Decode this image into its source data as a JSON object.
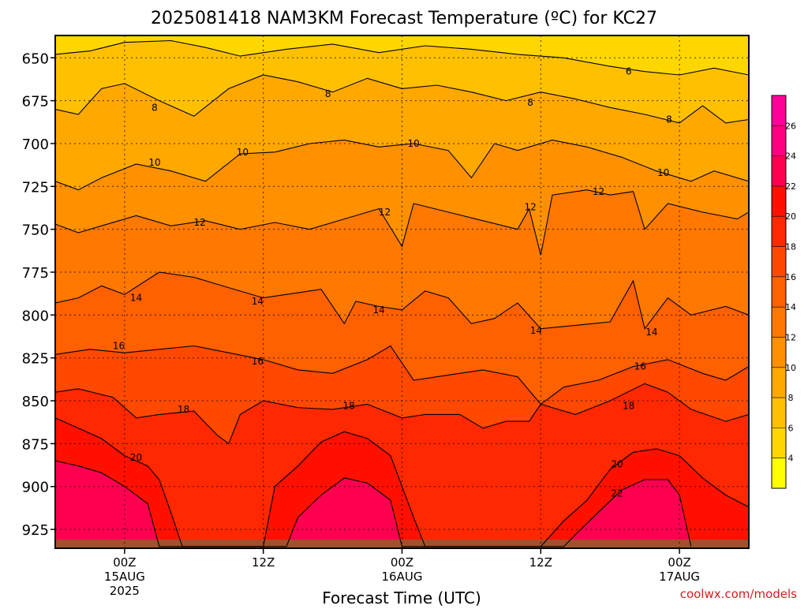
{
  "chart_data": {
    "type": "contour",
    "title": "2025081418 NAM3KM Forecast Temperature (ºC) for KC27",
    "xlabel": "Forecast Time (UTC)",
    "ylabel": "",
    "credit": "coolwx.com/models",
    "x_ticks": [
      {
        "label": "00Z",
        "sub1": "15AUG",
        "sub2": "2025",
        "hours": 6
      },
      {
        "label": "12Z",
        "sub1": "",
        "sub2": "",
        "hours": 18
      },
      {
        "label": "00Z",
        "sub1": "16AUG",
        "sub2": "",
        "hours": 30
      },
      {
        "label": "12Z",
        "sub1": "",
        "sub2": "",
        "hours": 42
      },
      {
        "label": "00Z",
        "sub1": "17AUG",
        "sub2": "",
        "hours": 54
      }
    ],
    "xlim": [
      0,
      60
    ],
    "y_ticks": [
      650,
      675,
      700,
      725,
      750,
      775,
      800,
      825,
      850,
      875,
      900,
      925
    ],
    "ylim": [
      637,
      936
    ],
    "y_inverted": true,
    "grid": true,
    "surface_pressure": 931,
    "colorbar": {
      "levels": [
        2,
        4,
        6,
        8,
        10,
        12,
        14,
        16,
        18,
        20,
        22,
        24,
        26,
        28
      ],
      "labels": [
        "4",
        "6",
        "8",
        "10",
        "12",
        "14",
        "16",
        "18",
        "20",
        "22",
        "24",
        "26"
      ],
      "colors": [
        "#ffff00",
        "#ffd700",
        "#ffc000",
        "#ffa800",
        "#ff9000",
        "#ff7800",
        "#ff6000",
        "#ff4800",
        "#ff2800",
        "#ff1000",
        "#ff0050",
        "#ff0080",
        "#ff0098"
      ]
    },
    "contours": [
      {
        "level": 6,
        "label": "6",
        "label_at": [
          [
            49.6,
            658
          ]
        ],
        "points": [
          [
            0,
            648
          ],
          [
            3,
            646
          ],
          [
            6,
            641
          ],
          [
            10,
            640
          ],
          [
            13,
            644
          ],
          [
            16,
            649
          ],
          [
            20,
            645
          ],
          [
            24,
            642
          ],
          [
            28,
            647
          ],
          [
            32,
            643
          ],
          [
            36,
            645
          ],
          [
            40,
            648
          ],
          [
            44,
            650
          ],
          [
            48,
            655
          ],
          [
            51,
            658
          ],
          [
            54,
            660
          ],
          [
            57,
            656
          ],
          [
            60,
            660
          ]
        ]
      },
      {
        "level": 8,
        "label": "8",
        "label_at": [
          [
            8.6,
            679
          ],
          [
            23.6,
            671
          ],
          [
            41.1,
            676
          ],
          [
            53.1,
            686
          ]
        ],
        "points": [
          [
            0,
            680
          ],
          [
            2,
            683
          ],
          [
            4,
            668
          ],
          [
            6,
            665
          ],
          [
            9,
            675
          ],
          [
            12,
            684
          ],
          [
            15,
            668
          ],
          [
            18,
            660
          ],
          [
            21,
            664
          ],
          [
            24,
            670
          ],
          [
            27,
            662
          ],
          [
            30,
            668
          ],
          [
            33,
            666
          ],
          [
            36,
            670
          ],
          [
            39,
            675
          ],
          [
            42,
            670
          ],
          [
            45,
            674
          ],
          [
            48,
            679
          ],
          [
            51,
            683
          ],
          [
            54,
            688
          ],
          [
            56,
            678
          ],
          [
            58,
            688
          ],
          [
            60,
            686
          ]
        ]
      },
      {
        "level": 10,
        "label": "10",
        "label_at": [
          [
            8.6,
            711
          ],
          [
            16.2,
            705
          ],
          [
            31.0,
            700
          ],
          [
            52.6,
            717
          ]
        ],
        "points": [
          [
            0,
            722
          ],
          [
            2,
            727
          ],
          [
            4,
            720
          ],
          [
            7,
            712
          ],
          [
            10,
            716
          ],
          [
            13,
            722
          ],
          [
            16,
            706
          ],
          [
            19,
            705
          ],
          [
            22,
            700
          ],
          [
            25,
            698
          ],
          [
            28,
            702
          ],
          [
            31,
            700
          ],
          [
            34,
            704
          ],
          [
            36,
            720
          ],
          [
            38,
            700
          ],
          [
            40,
            704
          ],
          [
            43,
            698
          ],
          [
            46,
            702
          ],
          [
            49,
            708
          ],
          [
            52,
            716
          ],
          [
            55,
            722
          ],
          [
            57,
            716
          ],
          [
            60,
            722
          ]
        ]
      },
      {
        "level": 12,
        "label": "12",
        "label_at": [
          [
            12.5,
            746
          ],
          [
            28.5,
            740
          ],
          [
            41.1,
            737
          ],
          [
            47.0,
            728
          ]
        ],
        "points": [
          [
            0,
            747
          ],
          [
            2,
            752
          ],
          [
            4,
            748
          ],
          [
            7,
            742
          ],
          [
            10,
            748
          ],
          [
            13,
            745
          ],
          [
            16,
            750
          ],
          [
            19,
            746
          ],
          [
            22,
            750
          ],
          [
            25,
            744
          ],
          [
            28,
            738
          ],
          [
            30,
            760
          ],
          [
            31,
            735
          ],
          [
            34,
            740
          ],
          [
            37,
            745
          ],
          [
            40,
            750
          ],
          [
            41,
            738
          ],
          [
            42,
            765
          ],
          [
            43,
            730
          ],
          [
            46,
            727
          ],
          [
            48,
            730
          ],
          [
            50,
            728
          ],
          [
            51,
            750
          ],
          [
            53,
            735
          ],
          [
            56,
            740
          ],
          [
            59,
            744
          ],
          [
            60,
            740
          ]
        ]
      },
      {
        "level": 14,
        "label": "14",
        "label_at": [
          [
            7.0,
            790
          ],
          [
            17.5,
            792
          ],
          [
            28.0,
            797
          ],
          [
            41.6,
            809
          ],
          [
            51.6,
            810
          ]
        ],
        "points": [
          [
            0,
            793
          ],
          [
            2,
            790
          ],
          [
            4,
            783
          ],
          [
            6,
            788
          ],
          [
            9,
            775
          ],
          [
            12,
            778
          ],
          [
            15,
            784
          ],
          [
            18,
            790
          ],
          [
            21,
            787
          ],
          [
            23,
            785
          ],
          [
            25,
            805
          ],
          [
            26,
            792
          ],
          [
            28,
            795
          ],
          [
            30,
            797
          ],
          [
            32,
            786
          ],
          [
            34,
            790
          ],
          [
            36,
            805
          ],
          [
            38,
            802
          ],
          [
            40,
            793
          ],
          [
            42,
            808
          ],
          [
            45,
            806
          ],
          [
            48,
            804
          ],
          [
            50,
            780
          ],
          [
            51,
            808
          ],
          [
            53,
            790
          ],
          [
            55,
            800
          ],
          [
            58,
            795
          ],
          [
            60,
            800
          ]
        ]
      },
      {
        "level": 16,
        "label": "16",
        "label_at": [
          [
            5.5,
            818
          ],
          [
            17.5,
            827
          ],
          [
            50.6,
            830
          ]
        ],
        "points": [
          [
            0,
            823
          ],
          [
            3,
            820
          ],
          [
            6,
            822
          ],
          [
            9,
            820
          ],
          [
            12,
            818
          ],
          [
            15,
            822
          ],
          [
            18,
            826
          ],
          [
            21,
            832
          ],
          [
            24,
            834
          ],
          [
            27,
            826
          ],
          [
            29,
            818
          ],
          [
            31,
            838
          ],
          [
            34,
            835
          ],
          [
            37,
            832
          ],
          [
            40,
            836
          ],
          [
            42,
            852
          ],
          [
            44,
            842
          ],
          [
            47,
            838
          ],
          [
            50,
            830
          ],
          [
            53,
            826
          ],
          [
            56,
            834
          ],
          [
            58,
            838
          ],
          [
            60,
            830
          ]
        ]
      },
      {
        "level": 18,
        "label": "18",
        "label_at": [
          [
            11.1,
            855
          ],
          [
            25.4,
            853
          ],
          [
            49.6,
            853
          ]
        ],
        "points": [
          [
            0,
            845
          ],
          [
            2,
            843
          ],
          [
            5,
            848
          ],
          [
            7,
            860
          ],
          [
            9,
            858
          ],
          [
            12,
            856
          ],
          [
            14,
            870
          ],
          [
            15,
            875
          ],
          [
            16,
            858
          ],
          [
            18,
            850
          ],
          [
            21,
            854
          ],
          [
            24,
            855
          ],
          [
            27,
            852
          ],
          [
            30,
            860
          ],
          [
            32,
            858
          ],
          [
            35,
            858
          ],
          [
            37,
            866
          ],
          [
            39,
            862
          ],
          [
            41,
            862
          ],
          [
            42,
            852
          ],
          [
            45,
            858
          ],
          [
            48,
            850
          ],
          [
            51,
            840
          ],
          [
            53,
            845
          ],
          [
            55,
            855
          ],
          [
            58,
            862
          ],
          [
            60,
            858
          ]
        ]
      },
      {
        "level": 20,
        "label": "20",
        "label_at": [
          [
            7.0,
            883
          ],
          [
            48.6,
            887
          ]
        ],
        "points": [
          [
            0,
            860
          ],
          [
            2,
            866
          ],
          [
            4,
            872
          ],
          [
            6,
            882
          ],
          [
            8,
            888
          ],
          [
            9,
            896
          ],
          [
            10,
            915
          ],
          [
            11,
            935
          ],
          [
            14,
            935
          ],
          [
            17,
            935
          ],
          [
            18,
            935
          ],
          [
            19,
            900
          ],
          [
            21,
            888
          ],
          [
            23,
            874
          ],
          [
            25,
            868
          ],
          [
            27,
            872
          ],
          [
            29,
            882
          ],
          [
            30,
            900
          ],
          [
            31,
            918
          ],
          [
            32,
            935
          ],
          [
            35,
            935
          ],
          [
            38,
            935
          ],
          [
            41,
            935
          ],
          [
            42,
            935
          ],
          [
            44,
            920
          ],
          [
            46,
            908
          ],
          [
            48,
            890
          ],
          [
            50,
            880
          ],
          [
            52,
            878
          ],
          [
            54,
            882
          ],
          [
            56,
            895
          ],
          [
            58,
            905
          ],
          [
            60,
            912
          ]
        ]
      },
      {
        "level": 22,
        "label": "22",
        "label_at": [
          [
            48.6,
            904
          ]
        ],
        "points": [
          [
            0,
            885
          ],
          [
            2,
            888
          ],
          [
            4,
            892
          ],
          [
            6,
            900
          ],
          [
            8,
            910
          ],
          [
            9,
            935
          ],
          [
            20,
            935
          ],
          [
            21,
            918
          ],
          [
            23,
            905
          ],
          [
            25,
            895
          ],
          [
            27,
            898
          ],
          [
            29,
            908
          ],
          [
            30,
            935
          ],
          [
            44,
            935
          ],
          [
            45,
            928
          ],
          [
            47,
            915
          ],
          [
            49,
            902
          ],
          [
            51,
            896
          ],
          [
            53,
            896
          ],
          [
            54,
            905
          ],
          [
            55,
            935
          ]
        ]
      }
    ]
  }
}
